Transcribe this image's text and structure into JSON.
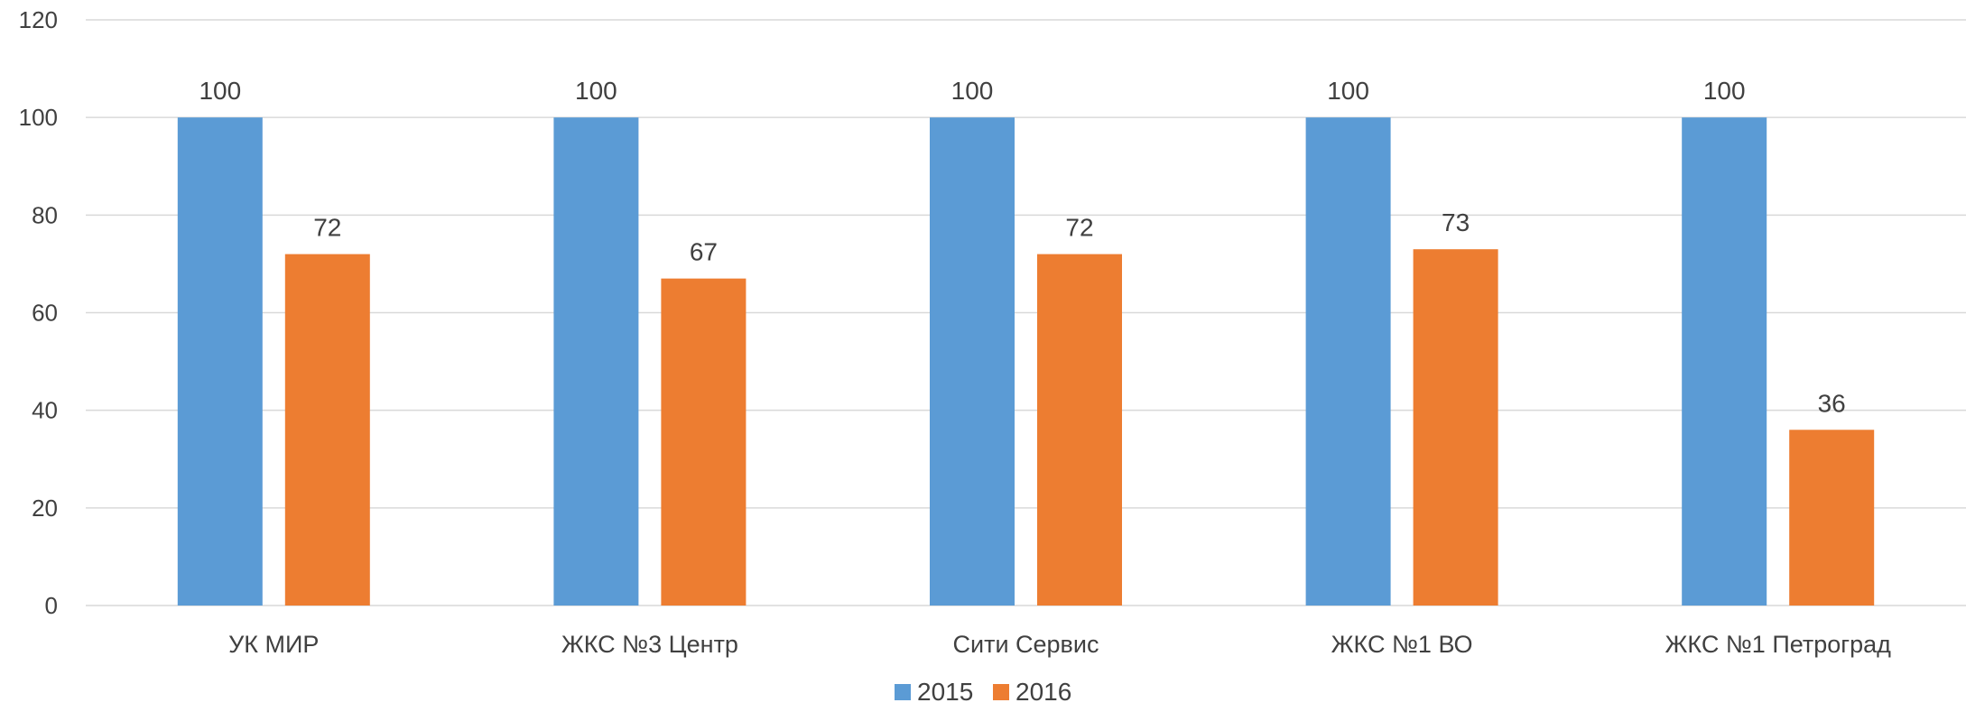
{
  "chart_data": {
    "type": "bar",
    "categories": [
      "УК МИР",
      "ЖКС №3 Центр",
      "Сити Сервис",
      "ЖКС №1 ВО",
      "ЖКС №1 Петроград"
    ],
    "series": [
      {
        "name": "2015",
        "color": "#5b9bd5",
        "values": [
          100,
          100,
          100,
          100,
          100
        ]
      },
      {
        "name": "2016",
        "color": "#ed7d31",
        "values": [
          72,
          67,
          72,
          73,
          36
        ]
      }
    ],
    "ylim": [
      0,
      120
    ],
    "yticks": [
      0,
      20,
      40,
      60,
      80,
      100,
      120
    ],
    "grid": true,
    "data_labels": true,
    "legend": "bottom-center"
  }
}
